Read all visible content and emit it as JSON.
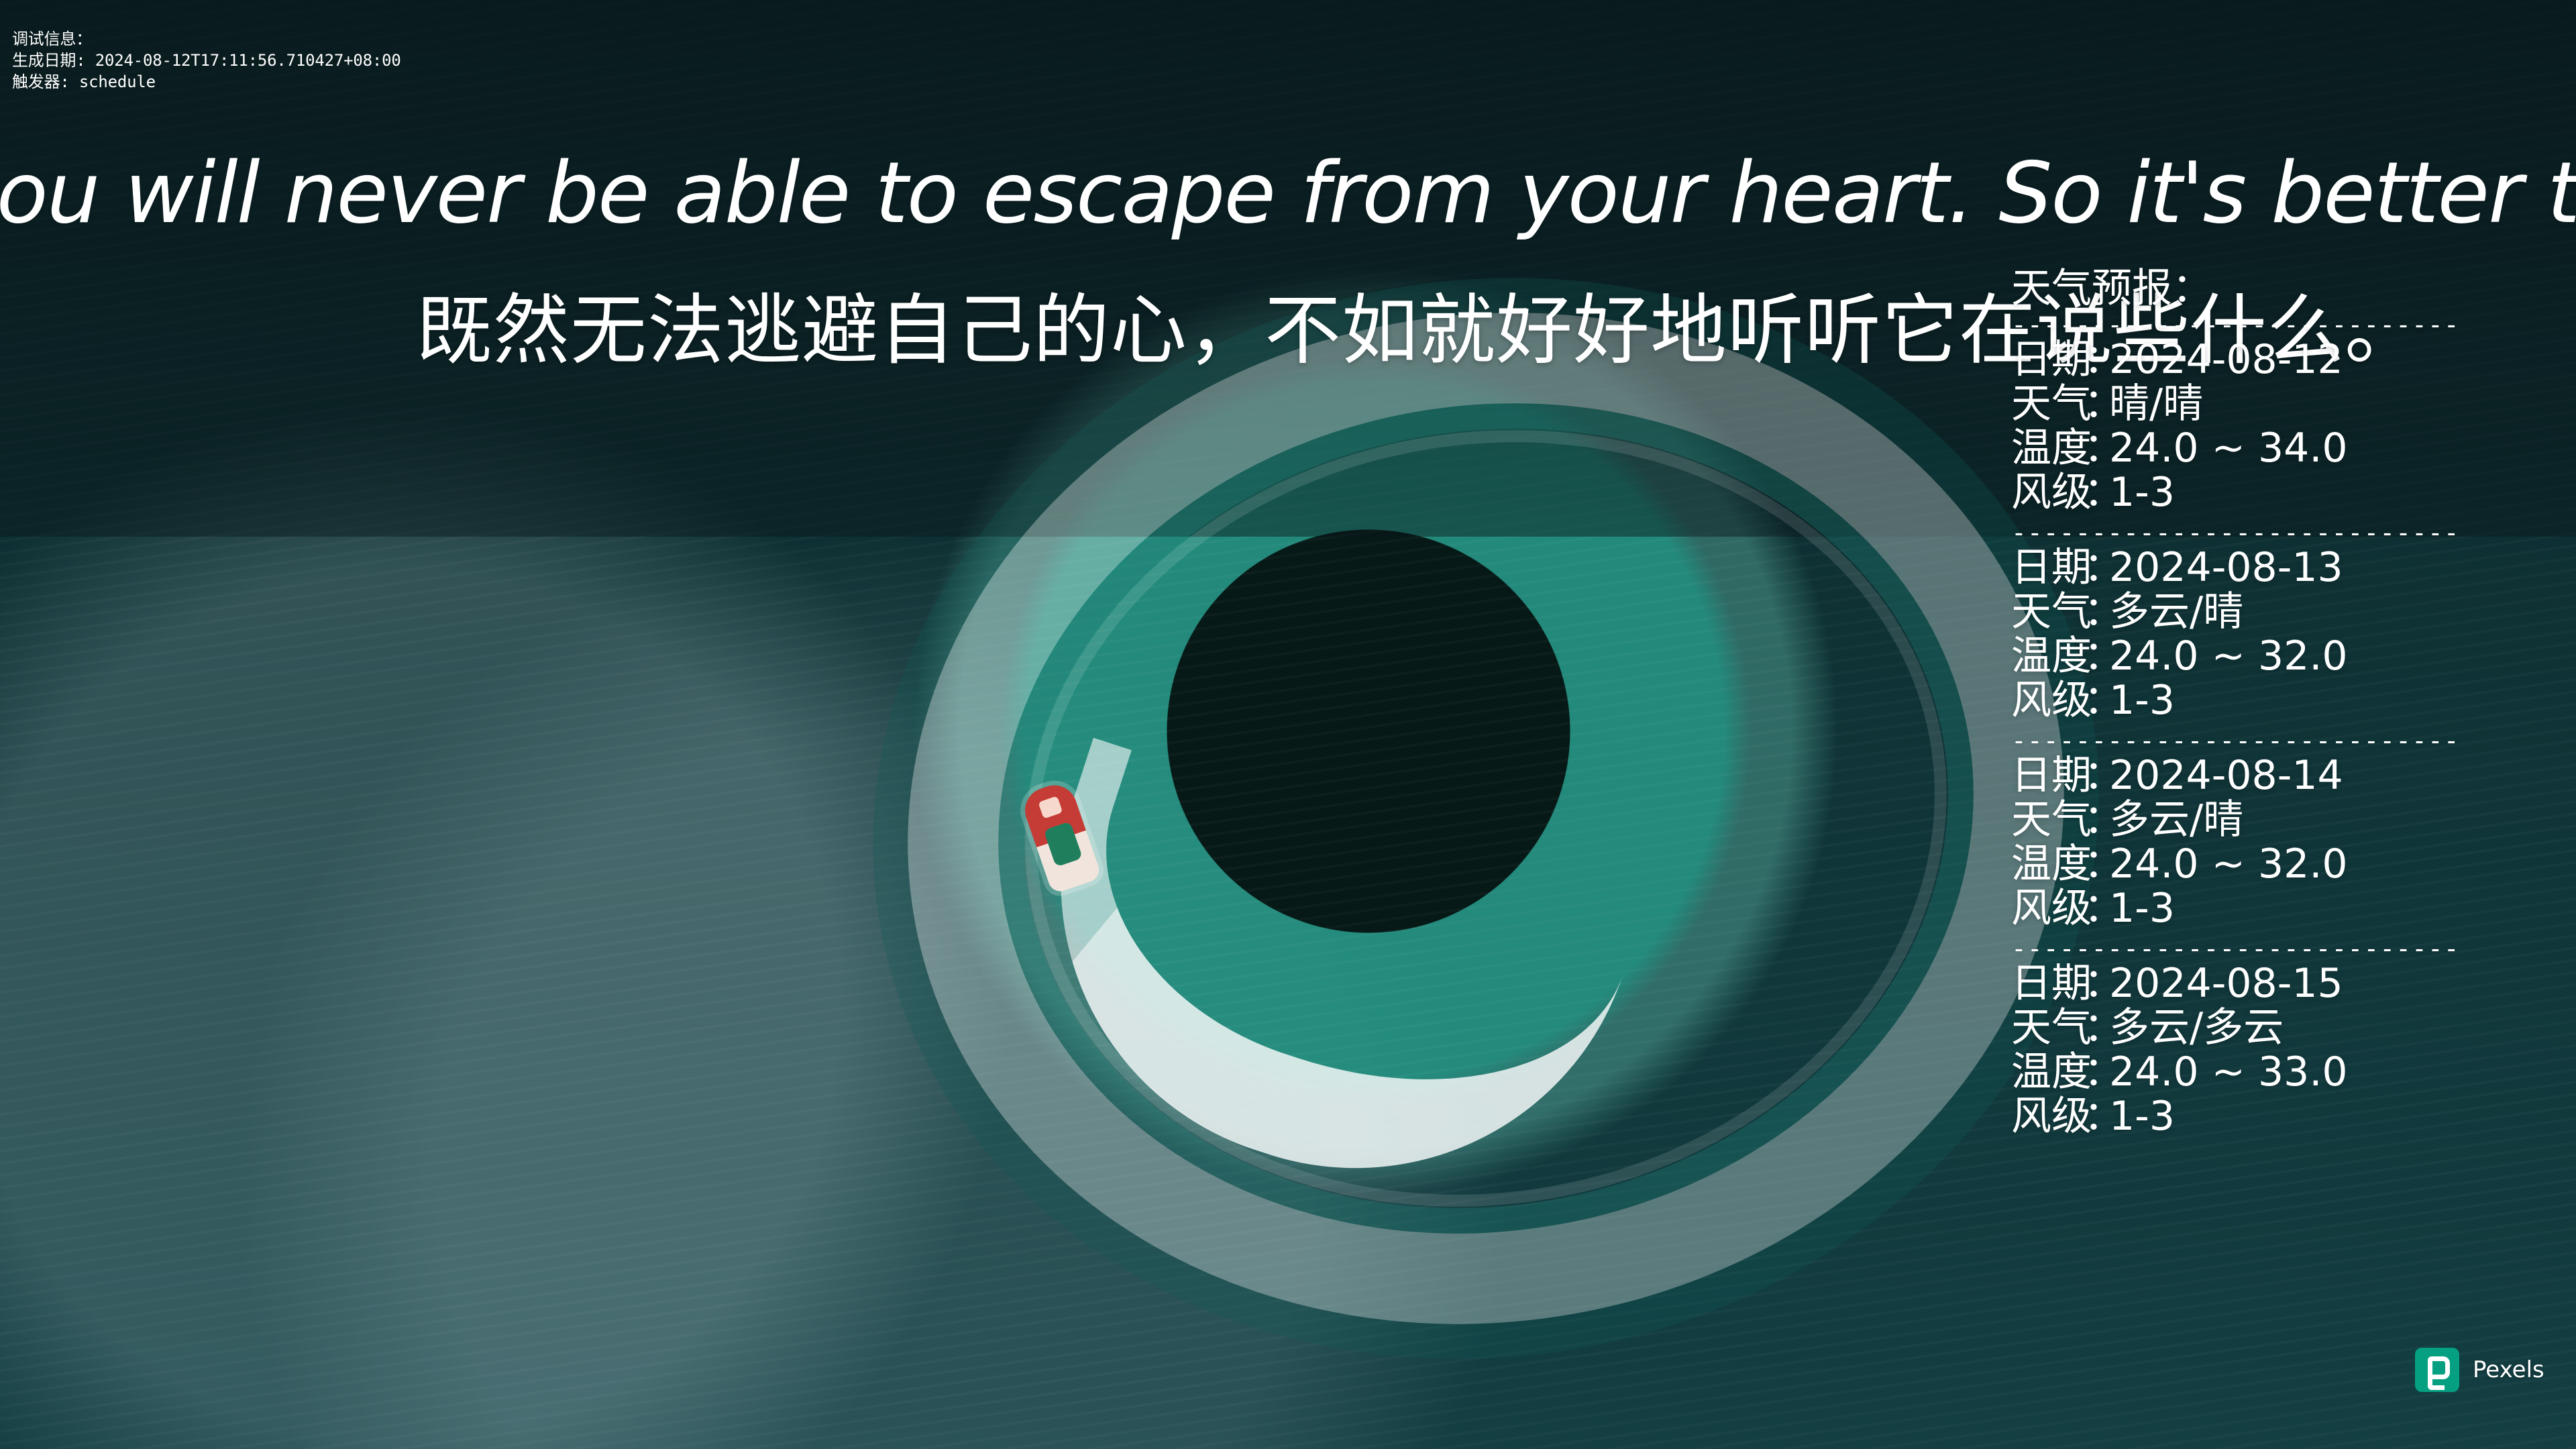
{
  "debug": {
    "title": "调试信息：",
    "date_label": "生成日期: 2024-08-12T17:11:56.710427+08:00",
    "trigger_label": "触发器: schedule"
  },
  "quotes": {
    "english": "you will never be able to escape from your heart. So it's better to listen to what it has to say.",
    "chinese": "既然无法逃避自己的心，不如就好好地听听它在说些什么。"
  },
  "weather": {
    "title": "天气预报：",
    "separator": "----------------------------",
    "labels": {
      "date": "日期",
      "weather": "天气",
      "temperature": "温度",
      "wind": "风级"
    },
    "colon": "：",
    "forecast": [
      {
        "date": "2024-08-12",
        "weather": "晴/晴",
        "temperature": "24.0 ~ 34.0",
        "wind": "1-3"
      },
      {
        "date": "2024-08-13",
        "weather": "多云/晴",
        "temperature": "24.0 ~ 32.0",
        "wind": "1-3"
      },
      {
        "date": "2024-08-14",
        "weather": "多云/晴",
        "temperature": "24.0 ~ 32.0",
        "wind": "1-3"
      },
      {
        "date": "2024-08-15",
        "weather": "多云/多云",
        "temperature": "24.0 ~ 33.0",
        "wind": "1-3"
      }
    ]
  },
  "branding": {
    "logo_name": "pexels-logo-icon",
    "label": "Pexels",
    "accent": "#05A081"
  }
}
